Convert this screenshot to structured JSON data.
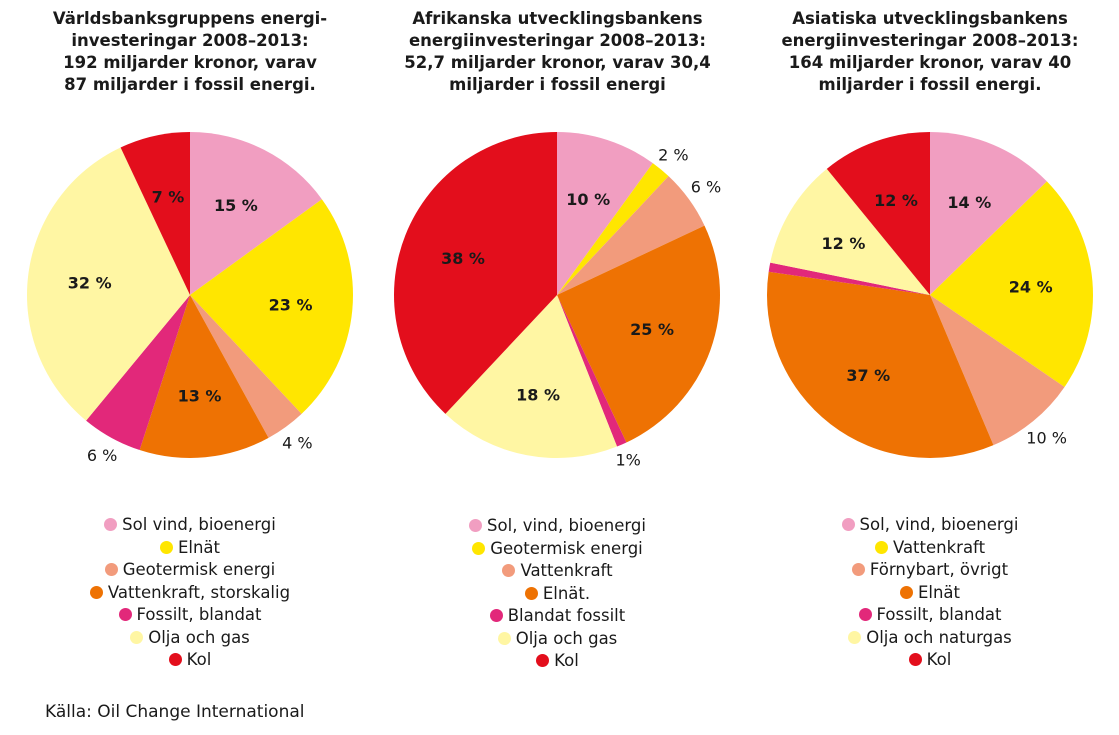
{
  "chart_data": [
    {
      "type": "pie",
      "title_lines": [
        "Världsbanksgruppens energi-",
        "investeringar 2008–2013:",
        "192 miljarder kronor, varav",
        "87 miljarder i fossil energi."
      ],
      "start_angle_deg": 0,
      "slices": [
        {
          "label": "Sol vind, bioenergi",
          "value": 15,
          "text": "15 %",
          "color": "#f19ec1"
        },
        {
          "label": "Elnät",
          "value": 23,
          "text": "23 %",
          "color": "#ffe600"
        },
        {
          "label": "Geotermisk energi",
          "value": 4,
          "text": "4 %",
          "color": "#f29b7c"
        },
        {
          "label": "Vattenkraft, storskalig",
          "value": 13,
          "text": "13 %",
          "color": "#ee7203"
        },
        {
          "label": "Fossilt, blandat",
          "value": 6,
          "text": "6 %",
          "color": "#e2287a"
        },
        {
          "label": "Olja och gas",
          "value": 32,
          "text": "32 %",
          "color": "#fff6a3"
        },
        {
          "label": "Kol",
          "value": 7,
          "text": "7 %",
          "color": "#e30e1c"
        }
      ]
    },
    {
      "type": "pie",
      "title_lines": [
        "Afrikanska utvecklingsbankens",
        "energiinvesteringar 2008–2013:",
        "52,7 miljarder kronor, varav 30,4",
        "miljarder i fossil energi"
      ],
      "start_angle_deg": 0,
      "slices": [
        {
          "label": "Sol, vind, bioenergi",
          "value": 10,
          "text": "10 %",
          "color": "#f19ec1"
        },
        {
          "label": "Geotermisk energi",
          "value": 2,
          "text": "2 %",
          "color": "#ffe600"
        },
        {
          "label": "Vattenkraft",
          "value": 6,
          "text": "6 %",
          "color": "#f29b7c"
        },
        {
          "label": "Elnät.",
          "value": 25,
          "text": "25 %",
          "color": "#ee7203"
        },
        {
          "label": "Blandat fossilt",
          "value": 1,
          "text": "1%",
          "color": "#e2287a"
        },
        {
          "label": "Olja och gas",
          "value": 18,
          "text": "18 %",
          "color": "#fff6a3"
        },
        {
          "label": "Kol",
          "value": 38,
          "text": "38 %",
          "color": "#e30e1c"
        }
      ]
    },
    {
      "type": "pie",
      "title_lines": [
        "Asiatiska utvecklingsbankens",
        "energiinvesteringar 2008–2013:",
        "164 miljarder kronor, varav 40",
        "miljarder i fossil energi."
      ],
      "start_angle_deg": 0,
      "slices": [
        {
          "label": "Sol, vind, bioenergi",
          "value": 14,
          "text": "14 %",
          "color": "#f19ec1"
        },
        {
          "label": "Vattenkraft",
          "value": 24,
          "text": "24 %",
          "color": "#ffe600"
        },
        {
          "label": "Förnybart, övrigt",
          "value": 10,
          "text": "10 %",
          "color": "#f29b7c"
        },
        {
          "label": "Elnät",
          "value": 37,
          "text": "37 %",
          "color": "#ee7203"
        },
        {
          "label": "Fossilt, blandat",
          "value": 1,
          "text": "",
          "color": "#e2287a"
        },
        {
          "label": "Olja och naturgas",
          "value": 12,
          "text": "12 %",
          "color": "#fff6a3"
        },
        {
          "label": "Kol",
          "value": 12,
          "text": "12 %",
          "color": "#e30e1c"
        }
      ]
    }
  ],
  "source": "Källa: Oil Change International"
}
